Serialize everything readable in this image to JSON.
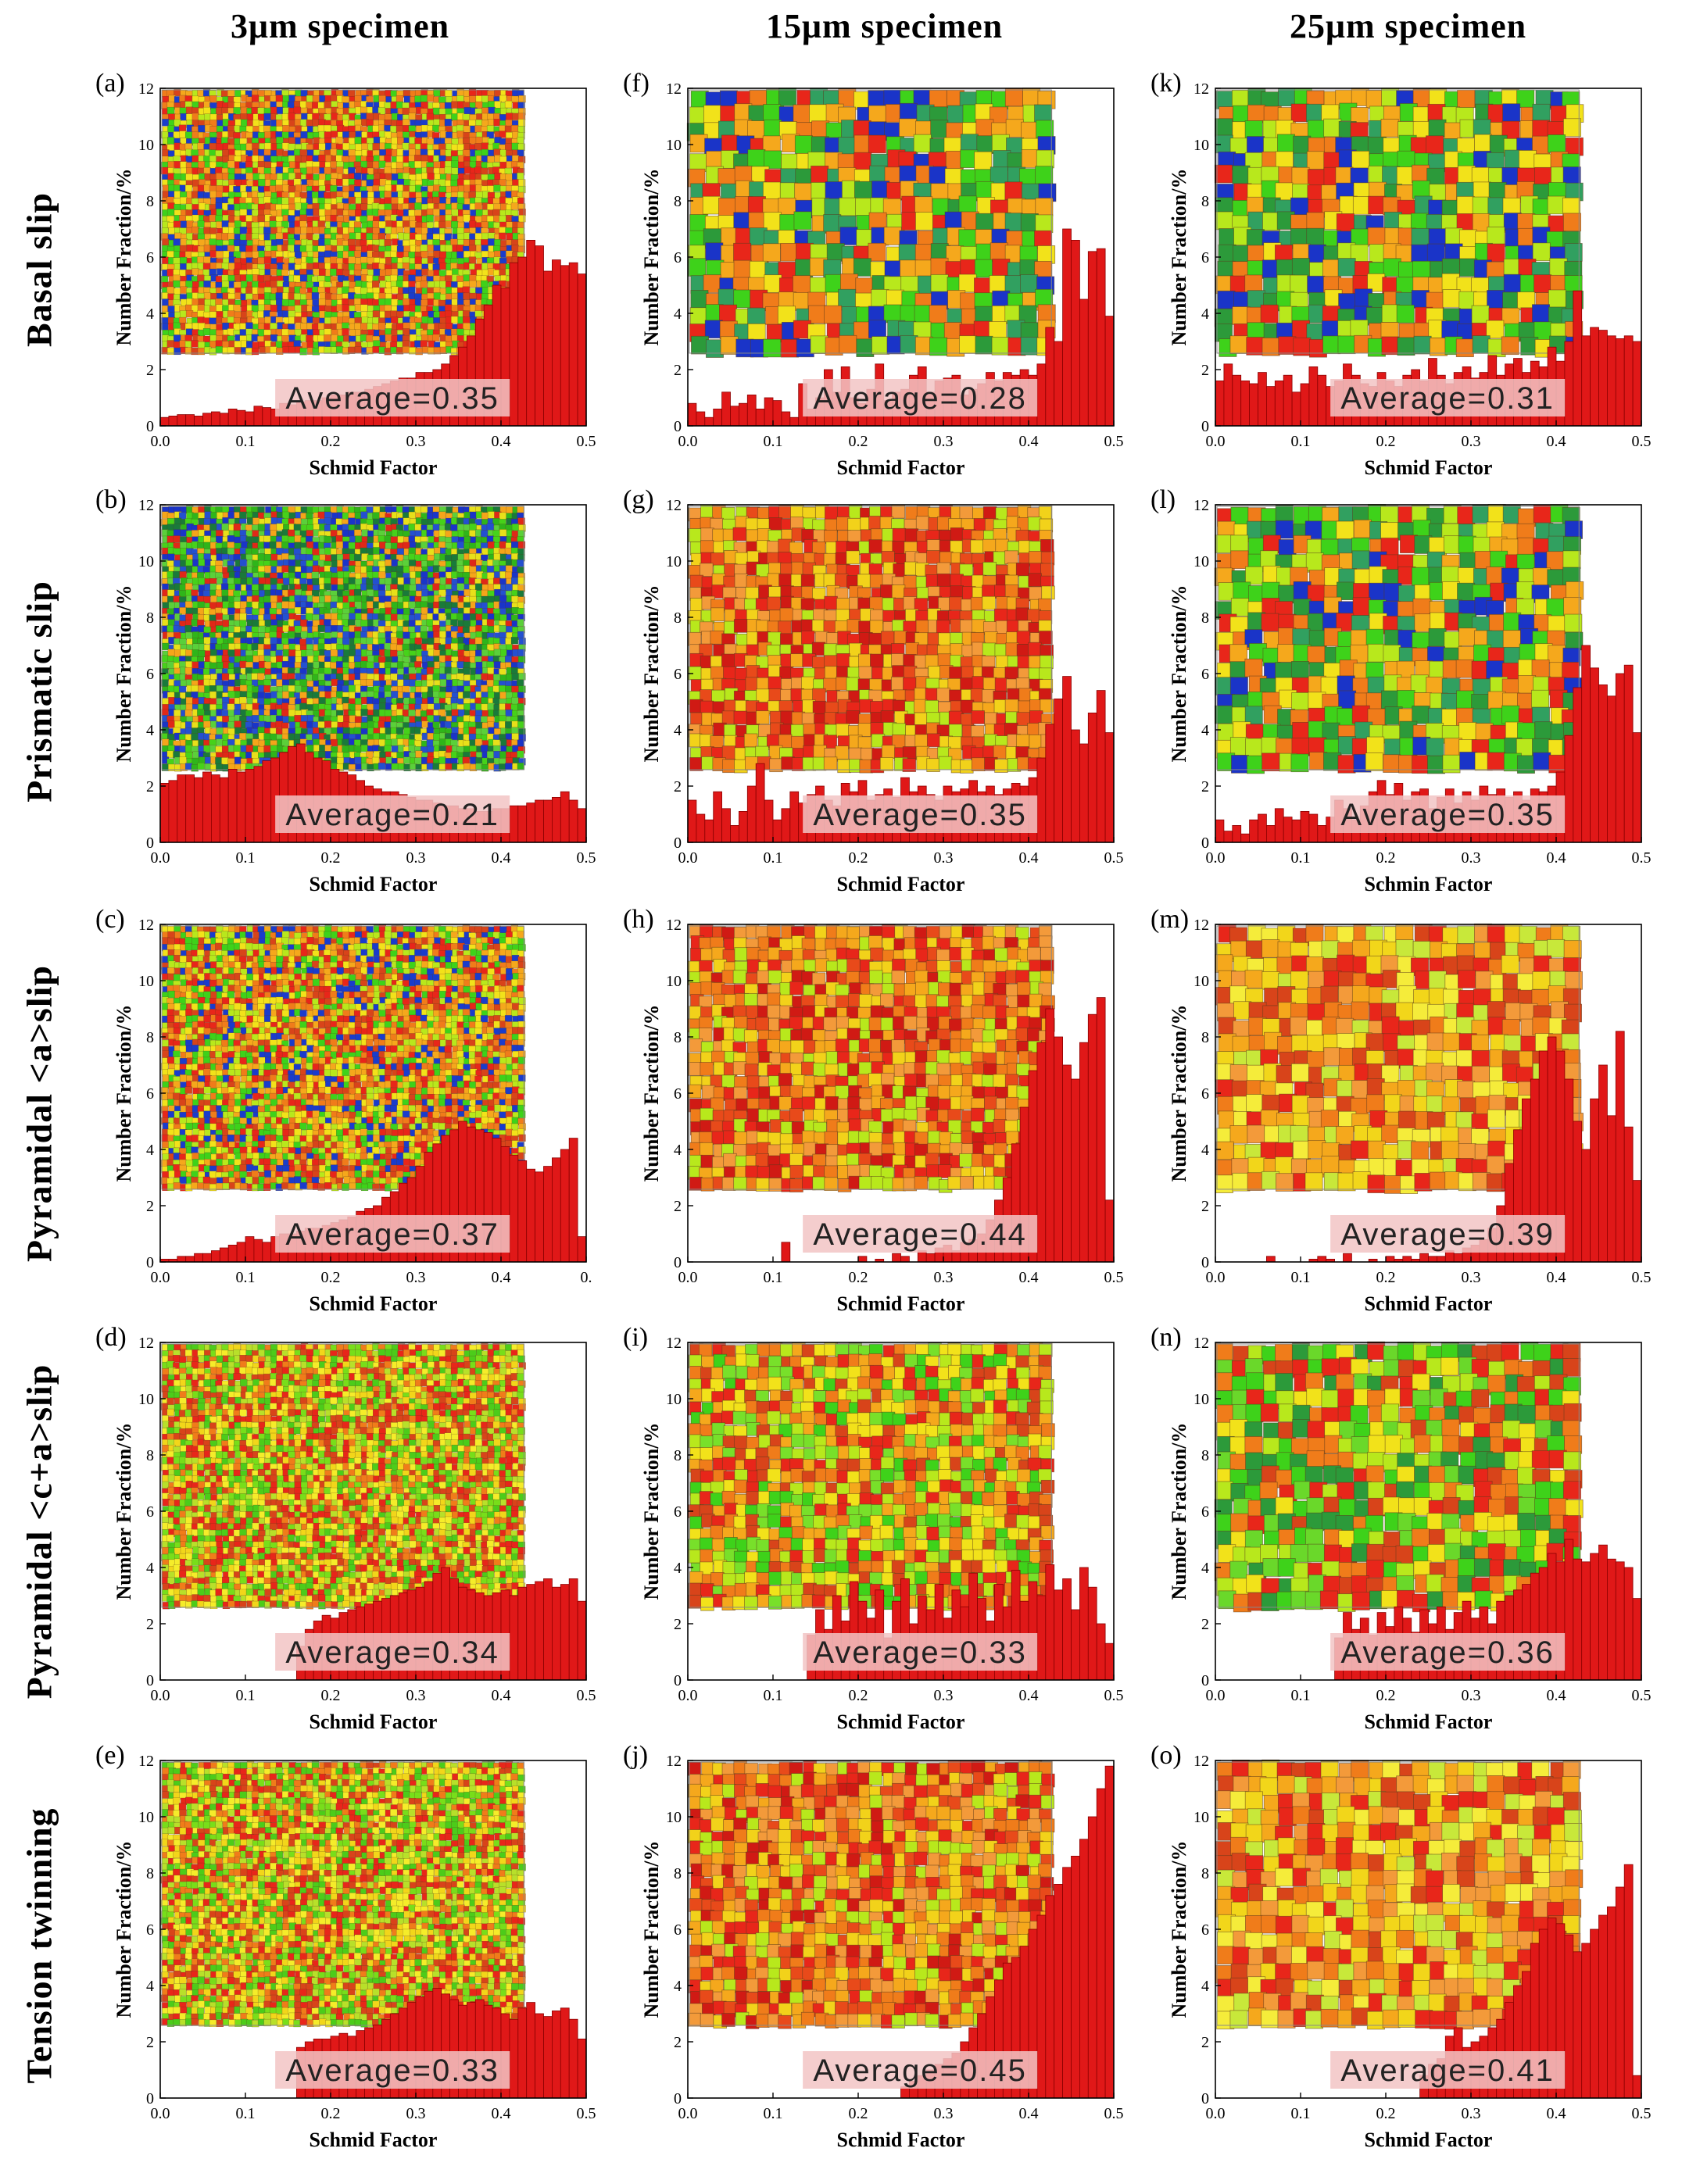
{
  "figure": {
    "columns": [
      "3μm specimen",
      "15μm specimen",
      "25μm specimen"
    ],
    "rows": [
      "Basal  slip",
      "Prismatic slip",
      "Pyramidal <a>slip",
      "Pyramidal <c+a>slip",
      "Tension twinning"
    ]
  },
  "colors": {
    "bar": "#e01818",
    "bar_edge": "#8a0000",
    "avg_box": "#f2c4c4",
    "axis": "#000000"
  },
  "chart_data": [
    {
      "type": "bar",
      "panel": "(a)",
      "title": "3μm specimen / Basal slip",
      "xlabel": "Schmid Factor",
      "ylabel": "Number Fraction/%",
      "xlim": [
        0,
        0.5
      ],
      "ylim": [
        0,
        12
      ],
      "xticks": [
        "0.0",
        "0.1",
        "0.2",
        "0.3",
        "0.4",
        "0.5"
      ],
      "yticks": [
        "0",
        "2",
        "4",
        "6",
        "8",
        "10",
        "12"
      ],
      "average": "Average=0.35",
      "ebsd_map": "fine-mixed",
      "values": [
        0.3,
        0.35,
        0.4,
        0.4,
        0.35,
        0.45,
        0.5,
        0.45,
        0.6,
        0.55,
        0.5,
        0.7,
        0.65,
        0.6,
        0.8,
        0.75,
        0.85,
        0.9,
        0.9,
        1.0,
        1.1,
        1.1,
        1.2,
        1.2,
        1.3,
        1.4,
        1.5,
        1.6,
        1.7,
        1.7,
        1.9,
        1.9,
        2.0,
        2.2,
        2.5,
        2.8,
        3.2,
        3.8,
        4.3,
        5.0,
        4.9,
        5.8,
        6.0,
        6.6,
        6.4,
        5.5,
        5.9,
        5.7,
        5.8,
        5.4
      ]
    },
    {
      "type": "bar",
      "panel": "(b)",
      "title": "3μm specimen / Prismatic slip",
      "xlabel": "Schmid Factor",
      "ylabel": "Number Fraction/%",
      "xlim": [
        0,
        0.5
      ],
      "ylim": [
        0,
        12
      ],
      "xticks": [
        "0.0",
        "0.1",
        "0.2",
        "0.3",
        "0.4",
        "0.5"
      ],
      "yticks": [
        "0",
        "2",
        "4",
        "6",
        "8",
        "10",
        "12"
      ],
      "average": "Average=0.21",
      "ebsd_map": "fine-green-blue",
      "values": [
        2.1,
        2.2,
        2.4,
        2.4,
        2.3,
        2.5,
        2.4,
        2.3,
        2.6,
        2.5,
        2.6,
        2.7,
        2.9,
        3.0,
        3.2,
        3.4,
        3.5,
        3.2,
        3.0,
        2.9,
        2.6,
        2.5,
        2.4,
        2.2,
        2.0,
        1.9,
        1.8,
        1.8,
        1.7,
        1.6,
        1.5,
        1.5,
        1.4,
        1.3,
        1.3,
        1.2,
        1.2,
        1.1,
        1.1,
        1.2,
        1.2,
        1.3,
        1.3,
        1.4,
        1.5,
        1.5,
        1.6,
        1.8,
        1.5,
        1.2
      ]
    },
    {
      "type": "bar",
      "panel": "(c)",
      "title": "3μm specimen / Pyramidal <a>slip",
      "xlabel": "Schmid Factor",
      "ylabel": "Number Fraction/%",
      "xlim": [
        0,
        0.5
      ],
      "ylim": [
        0,
        12
      ],
      "xticks": [
        "0.0",
        "0.1",
        "0.2",
        "0.3",
        "0.4",
        "0."
      ],
      "yticks": [
        "0",
        "2",
        "4",
        "6",
        "8",
        "10",
        "12"
      ],
      "average": "Average=0.37",
      "ebsd_map": "fine-mixed",
      "values": [
        0.1,
        0.1,
        0.2,
        0.2,
        0.3,
        0.3,
        0.4,
        0.5,
        0.6,
        0.7,
        0.9,
        0.8,
        0.7,
        0.9,
        1.0,
        1.0,
        1.1,
        1.2,
        1.2,
        1.3,
        1.4,
        1.5,
        1.6,
        1.8,
        1.9,
        2.0,
        2.3,
        2.5,
        2.8,
        3.0,
        3.4,
        3.9,
        4.2,
        4.5,
        4.7,
        5.0,
        4.8,
        4.7,
        4.6,
        4.4,
        4.1,
        3.8,
        3.6,
        3.3,
        3.2,
        3.4,
        3.7,
        4.0,
        4.4,
        0.9
      ]
    },
    {
      "type": "bar",
      "panel": "(d)",
      "title": "3μm specimen / Pyramidal <c+a>slip",
      "xlabel": "Schmid Factor",
      "ylabel": "Number Fraction/%",
      "xlim": [
        0,
        0.5
      ],
      "ylim": [
        0,
        12
      ],
      "xticks": [
        "0.0",
        "0.1",
        "0.2",
        "0.3",
        "0.4",
        "0.5"
      ],
      "yticks": [
        "0",
        "2",
        "4",
        "6",
        "8",
        "10",
        "12"
      ],
      "average": "Average=0.34",
      "ebsd_map": "fine-red-green-yellow",
      "values": [
        0,
        0,
        0,
        0,
        0,
        0,
        0,
        0,
        0,
        0,
        0,
        0,
        0,
        0,
        0,
        0,
        1.2,
        1.8,
        2.1,
        2.3,
        2.2,
        2.4,
        2.5,
        2.6,
        2.7,
        2.8,
        2.9,
        3.0,
        3.1,
        3.2,
        3.3,
        3.5,
        3.8,
        4.0,
        3.6,
        3.3,
        3.2,
        3.1,
        3.0,
        3.1,
        3.2,
        3.0,
        3.3,
        3.4,
        3.5,
        3.6,
        3.3,
        3.4,
        3.6,
        2.8
      ]
    },
    {
      "type": "bar",
      "panel": "(e)",
      "title": "3μm specimen / Tension twinning",
      "xlabel": "Schmid Factor",
      "ylabel": "Number Fraction/%",
      "xlim": [
        0,
        0.5
      ],
      "ylim": [
        0,
        12
      ],
      "xticks": [
        "0.0",
        "0.1",
        "0.2",
        "0.3",
        "0.4",
        "0.5"
      ],
      "yticks": [
        "0",
        "2",
        "4",
        "6",
        "8",
        "10",
        "12"
      ],
      "average": "Average=0.33",
      "ebsd_map": "fine-red-green-yellow",
      "values": [
        0,
        0,
        0,
        0,
        0,
        0,
        0,
        0,
        0,
        0,
        0,
        0,
        0,
        0,
        0,
        0,
        1.8,
        2.0,
        2.1,
        2.1,
        2.2,
        2.3,
        2.2,
        2.4,
        2.5,
        2.6,
        2.8,
        3.0,
        3.2,
        3.4,
        3.6,
        3.8,
        3.9,
        3.7,
        3.5,
        3.3,
        3.4,
        3.5,
        3.3,
        3.2,
        3.0,
        2.8,
        3.2,
        3.4,
        3.0,
        2.9,
        3.1,
        3.2,
        2.8,
        2.1
      ]
    },
    {
      "type": "bar",
      "panel": "(f)",
      "title": "15μm specimen / Basal slip",
      "xlabel": "Schmid Factor",
      "ylabel": "Number Fraction/%",
      "xlim": [
        0,
        0.5
      ],
      "ylim": [
        0,
        12
      ],
      "xticks": [
        "0.0",
        "0.1",
        "0.2",
        "0.3",
        "0.4",
        "0.5"
      ],
      "yticks": [
        "0",
        "2",
        "4",
        "6",
        "8",
        "10",
        "12"
      ],
      "average": "Average=0.28",
      "ebsd_map": "coarse-mixed-blue",
      "values": [
        0.8,
        0.5,
        0.3,
        0.6,
        1.2,
        0.7,
        0.8,
        1.1,
        0.6,
        1.0,
        0.9,
        0.5,
        0.3,
        1.5,
        0.6,
        1.0,
        2.0,
        1.2,
        2.1,
        1.0,
        0.8,
        1.3,
        2.2,
        0.9,
        1.2,
        1.3,
        1.8,
        2.1,
        1.2,
        1.6,
        1.7,
        1.8,
        1.1,
        1.3,
        1.5,
        1.9,
        1.6,
        1.9,
        1.8,
        2.0,
        1.8,
        2.2,
        3.5,
        3.0,
        7.0,
        6.6,
        4.5,
        6.2,
        6.3,
        3.9
      ]
    },
    {
      "type": "bar",
      "panel": "(g)",
      "title": "15μm specimen / Prismatic slip",
      "xlabel": "Schmid Factor",
      "ylabel": "Number Fraction/%",
      "xlim": [
        0,
        0.5
      ],
      "ylim": [
        0,
        12
      ],
      "xticks": [
        "0.0",
        "0.1",
        "0.2",
        "0.3",
        "0.4",
        "0.5"
      ],
      "yticks": [
        "0",
        "2",
        "4",
        "6",
        "8",
        "10",
        "12"
      ],
      "average": "Average=0.35",
      "ebsd_map": "medium-red-orange",
      "values": [
        1.5,
        1.0,
        0.8,
        1.8,
        1.2,
        0.6,
        1.1,
        2.0,
        2.8,
        1.5,
        0.8,
        1.2,
        1.8,
        1.4,
        1.7,
        2.0,
        1.5,
        1.3,
        2.1,
        1.8,
        2.2,
        1.5,
        1.7,
        1.9,
        1.6,
        2.3,
        1.8,
        2.0,
        1.7,
        1.5,
        2.0,
        1.8,
        1.9,
        2.2,
        1.8,
        2.0,
        1.7,
        1.9,
        2.1,
        2.0,
        2.3,
        3.0,
        4.2,
        5.1,
        5.9,
        4.0,
        3.5,
        4.6,
        5.4,
        3.9
      ]
    },
    {
      "type": "bar",
      "panel": "(h)",
      "title": "15μm specimen / Pyramidal <a>slip",
      "xlabel": "Schmid Factor",
      "ylabel": "Number Fraction/%",
      "xlim": [
        0,
        0.5
      ],
      "ylim": [
        0,
        12
      ],
      "xticks": [
        "0.0",
        "0.1",
        "0.2",
        "0.3",
        "0.4",
        "0.5"
      ],
      "yticks": [
        "0",
        "2",
        "4",
        "6",
        "8",
        "10",
        "12"
      ],
      "average": "Average=0.44",
      "ebsd_map": "medium-red-orange",
      "values": [
        0,
        0,
        0,
        0,
        0,
        0,
        0,
        0,
        0,
        0,
        0,
        0.7,
        0,
        0,
        0,
        0,
        0,
        0,
        0,
        0,
        0.2,
        0,
        0.1,
        0,
        0.3,
        0.2,
        0,
        0.4,
        0.3,
        0.5,
        0.6,
        0.4,
        0.7,
        0.8,
        1.0,
        1.5,
        2.2,
        3.0,
        4.2,
        5.5,
        6.8,
        7.8,
        9.0,
        8.0,
        7.0,
        6.5,
        7.8,
        8.8,
        9.4,
        2.2
      ]
    },
    {
      "type": "bar",
      "panel": "(i)",
      "title": "15μm specimen / Pyramidal <c+a>slip",
      "xlabel": "Schmid Factor",
      "ylabel": "Number Fraction/%",
      "xlim": [
        0,
        0.5
      ],
      "ylim": [
        0,
        12
      ],
      "xticks": [
        "0.0",
        "0.1",
        "0.2",
        "0.3",
        "0.4",
        "0.5"
      ],
      "yticks": [
        "0",
        "2",
        "4",
        "6",
        "8",
        "10",
        "12"
      ],
      "average": "Average=0.33",
      "ebsd_map": "medium-red-green",
      "values": [
        0,
        0,
        0,
        0,
        0,
        0,
        0,
        0,
        0,
        0,
        0,
        0,
        0,
        0,
        1.6,
        2.5,
        1.8,
        3.0,
        2.1,
        3.5,
        2.8,
        2.2,
        3.2,
        1.5,
        2.8,
        3.6,
        2.0,
        3.0,
        2.5,
        3.4,
        2.2,
        3.2,
        2.6,
        3.8,
        2.9,
        2.1,
        3.4,
        2.6,
        3.9,
        2.8,
        3.5,
        3.0,
        4.1,
        3.2,
        3.6,
        2.5,
        4.0,
        3.3,
        2.0,
        1.3
      ]
    },
    {
      "type": "bar",
      "panel": "(j)",
      "title": "15μm specimen / Tension twinning",
      "xlabel": "Schmid Factor",
      "ylabel": "Number Fraction/%",
      "xlim": [
        0,
        0.5
      ],
      "ylim": [
        0,
        12
      ],
      "xticks": [
        "0.0",
        "0.1",
        "0.2",
        "0.3",
        "0.4",
        "0.5"
      ],
      "yticks": [
        "0",
        "2",
        "4",
        "6",
        "8",
        "10",
        "12"
      ],
      "average": "Average=0.45",
      "ebsd_map": "medium-red-orange",
      "values": [
        0,
        0,
        0,
        0,
        0,
        0,
        0,
        0,
        0,
        0,
        0,
        0,
        0,
        0,
        0,
        0,
        0,
        0,
        0,
        0,
        0,
        0,
        0,
        0,
        0,
        0.4,
        0.6,
        0.8,
        1.0,
        1.2,
        1.4,
        1.6,
        2.0,
        2.5,
        3.0,
        3.6,
        4.2,
        4.8,
        5.0,
        5.4,
        6.0,
        6.5,
        7.2,
        7.6,
        8.2,
        8.6,
        9.2,
        10.0,
        11.0,
        11.8
      ]
    },
    {
      "type": "bar",
      "panel": "(k)",
      "title": "25μm specimen / Basal slip",
      "xlabel": "Schmid Factor",
      "ylabel": "Number Fraction/%",
      "xlim": [
        0,
        0.5
      ],
      "ylim": [
        0,
        12
      ],
      "xticks": [
        "0.0",
        "0.1",
        "0.2",
        "0.3",
        "0.4",
        "0.5"
      ],
      "yticks": [
        "0",
        "2",
        "4",
        "6",
        "8",
        "10",
        "12"
      ],
      "average": "Average=0.31",
      "ebsd_map": "coarse-mixed-blue",
      "values": [
        1.6,
        2.2,
        1.8,
        1.6,
        1.5,
        1.9,
        1.4,
        1.6,
        1.8,
        1.2,
        1.5,
        2.1,
        1.8,
        1.4,
        1.6,
        2.2,
        1.8,
        1.5,
        1.4,
        1.9,
        1.6,
        1.4,
        1.8,
        2.0,
        1.6,
        2.4,
        1.8,
        1.5,
        1.9,
        2.1,
        1.7,
        1.9,
        2.5,
        1.8,
        2.2,
        2.4,
        1.9,
        2.3,
        2.1,
        2.8,
        2.3,
        3.0,
        4.8,
        3.2,
        3.5,
        3.4,
        3.2,
        3.1,
        3.2,
        3.0
      ]
    },
    {
      "type": "bar",
      "panel": "(l)",
      "title": "25μm specimen / Prismatic slip",
      "xlabel": "Schmin Factor",
      "ylabel": "Number Fraction/%",
      "xlim": [
        0,
        0.5
      ],
      "ylim": [
        0,
        12
      ],
      "xticks": [
        "0.0",
        "0.1",
        "0.2",
        "0.3",
        "0.4",
        "0.5"
      ],
      "yticks": [
        "0",
        "2",
        "4",
        "6",
        "8",
        "10",
        "12"
      ],
      "average": "Average=0.35",
      "ebsd_map": "coarse-mixed-blue",
      "values": [
        0.8,
        0.4,
        0.6,
        0.3,
        0.8,
        1.0,
        0.6,
        1.2,
        0.9,
        0.8,
        1.1,
        1.0,
        0.6,
        0.9,
        1.5,
        1.2,
        0.8,
        1.3,
        1.8,
        2.2,
        1.7,
        2.1,
        1.5,
        1.8,
        1.9,
        1.2,
        1.6,
        1.9,
        1.4,
        1.8,
        1.5,
        2.0,
        1.7,
        1.9,
        1.6,
        1.8,
        1.5,
        1.9,
        1.8,
        2.0,
        2.5,
        3.8,
        5.5,
        7.0,
        6.2,
        5.6,
        5.2,
        6.0,
        6.3,
        3.9
      ]
    },
    {
      "type": "bar",
      "panel": "(m)",
      "title": "25μm specimen / Pyramidal <a>slip",
      "xlabel": "Schmid Factor",
      "ylabel": "Number Fraction/%",
      "xlim": [
        0,
        0.5
      ],
      "ylim": [
        0,
        12
      ],
      "xticks": [
        "0.0",
        "0.1",
        "0.2",
        "0.3",
        "0.4",
        "0.5"
      ],
      "yticks": [
        "0",
        "2",
        "4",
        "6",
        "8",
        "10",
        "12"
      ],
      "average": "Average=0.39",
      "ebsd_map": "coarse-red-orange-yellow",
      "values": [
        0,
        0,
        0,
        0,
        0,
        0,
        0.2,
        0,
        0,
        0,
        0,
        0.1,
        0.2,
        0.1,
        0,
        0.3,
        0,
        0,
        0.1,
        0,
        0.2,
        0.1,
        0.2,
        0.1,
        0.3,
        0.2,
        0.2,
        0.4,
        0.3,
        0.5,
        0.6,
        0.8,
        1.2,
        2.0,
        3.5,
        4.7,
        5.8,
        6.5,
        7.5,
        8.0,
        7.5,
        6.5,
        5.0,
        4.0,
        5.8,
        7.0,
        5.2,
        8.2,
        4.8,
        2.9
      ]
    },
    {
      "type": "bar",
      "panel": "(n)",
      "title": "25μm specimen / Pyramidal <c+a>slip",
      "xlabel": "Schmid Factor",
      "ylabel": "Number Fraction/%",
      "xlim": [
        0,
        0.5
      ],
      "ylim": [
        0,
        12
      ],
      "xticks": [
        "0.0",
        "0.1",
        "0.2",
        "0.3",
        "0.4",
        "0.5"
      ],
      "yticks": [
        "0",
        "2",
        "4",
        "6",
        "8",
        "10",
        "12"
      ],
      "average": "Average=0.36",
      "ebsd_map": "coarse-red-green",
      "values": [
        0,
        0,
        0,
        0,
        0,
        0,
        0,
        0,
        0,
        0,
        0,
        0,
        0,
        0,
        1.5,
        2.4,
        1.8,
        2.2,
        1.6,
        2.4,
        1.9,
        2.6,
        2.2,
        1.7,
        2.5,
        2.0,
        2.6,
        1.8,
        2.4,
        2.8,
        2.2,
        2.6,
        2.0,
        2.8,
        3.0,
        3.2,
        3.4,
        3.8,
        4.0,
        4.5,
        4.2,
        5.0,
        4.3,
        4.2,
        4.5,
        4.8,
        4.3,
        4.2,
        4.0,
        2.9
      ]
    },
    {
      "type": "bar",
      "panel": "(o)",
      "title": "25μm specimen / Tension twinning",
      "xlabel": "Schmid Factor",
      "ylabel": "Number Fraction/%",
      "xlim": [
        0,
        0.5
      ],
      "ylim": [
        0,
        12
      ],
      "xticks": [
        "0.0",
        "0.1",
        "0.2",
        "0.3",
        "0.4",
        "0.5"
      ],
      "yticks": [
        "0",
        "2",
        "4",
        "6",
        "8",
        "10",
        "12"
      ],
      "average": "Average=0.41",
      "ebsd_map": "coarse-red-orange-yellow",
      "values": [
        0,
        0,
        0,
        0,
        0,
        0,
        0,
        0,
        0,
        0,
        0,
        0,
        0,
        0,
        0,
        0,
        0,
        0,
        0,
        0,
        0,
        0,
        0,
        0,
        0.8,
        1.2,
        1.4,
        2.2,
        2.5,
        1.8,
        2.0,
        2.2,
        2.5,
        2.8,
        3.4,
        4.0,
        4.5,
        5.5,
        6.0,
        6.4,
        6.2,
        5.8,
        5.2,
        5.5,
        6.0,
        6.5,
        6.8,
        7.5,
        8.3,
        0.8
      ]
    }
  ]
}
